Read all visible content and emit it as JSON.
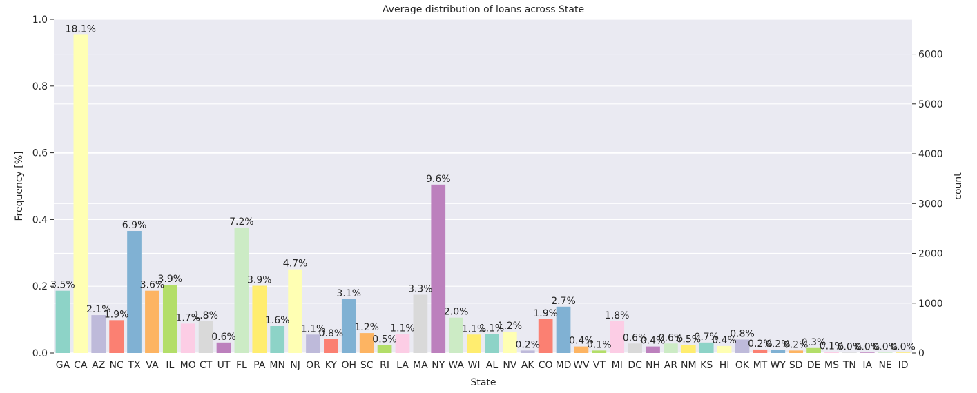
{
  "chart_data": {
    "type": "bar",
    "title": "Average distribution of loans across State",
    "xlabel": "State",
    "ylabel": "Frequency [%]",
    "y2label": "count",
    "ylim": [
      0,
      1.0
    ],
    "y2lim": [
      0,
      6700
    ],
    "yticks": [
      "0.0",
      "0.2",
      "0.4",
      "0.6",
      "0.8",
      "1.0"
    ],
    "y2ticks": [
      "0",
      "1000",
      "2000",
      "3000",
      "4000",
      "5000",
      "6000"
    ],
    "grid": true,
    "categories": [
      "GA",
      "CA",
      "AZ",
      "NC",
      "TX",
      "VA",
      "IL",
      "MO",
      "CT",
      "UT",
      "FL",
      "PA",
      "MN",
      "NJ",
      "OR",
      "KY",
      "OH",
      "SC",
      "RI",
      "LA",
      "MA",
      "NY",
      "WA",
      "WI",
      "AL",
      "NV",
      "AK",
      "CO",
      "MD",
      "WV",
      "VT",
      "MI",
      "DC",
      "NH",
      "AR",
      "NM",
      "KS",
      "HI",
      "OK",
      "MT",
      "WY",
      "SD",
      "DE",
      "MS",
      "TN",
      "IA",
      "NE",
      "ID"
    ],
    "counts": [
      1250,
      6390,
      760,
      660,
      2450,
      1250,
      1370,
      590,
      640,
      210,
      2520,
      1350,
      540,
      1680,
      370,
      280,
      1080,
      400,
      160,
      380,
      1170,
      3380,
      710,
      370,
      380,
      430,
      50,
      680,
      930,
      130,
      50,
      640,
      190,
      130,
      190,
      160,
      210,
      140,
      270,
      70,
      60,
      50,
      100,
      20,
      10,
      10,
      10,
      10
    ],
    "pct_labels": [
      "3.5%",
      "18.1%",
      "2.1%",
      "1.9%",
      "6.9%",
      "3.6%",
      "3.9%",
      "1.7%",
      "1.8%",
      "0.6%",
      "7.2%",
      "3.9%",
      "1.6%",
      "4.7%",
      "1.1%",
      "0.8%",
      "3.1%",
      "1.2%",
      "0.5%",
      "1.1%",
      "3.3%",
      "9.6%",
      "2.0%",
      "1.1%",
      "1.1%",
      "1.2%",
      "0.2%",
      "1.9%",
      "2.7%",
      "0.4%",
      "0.1%",
      "1.8%",
      "0.6%",
      "0.4%",
      "0.6%",
      "0.5%",
      "0.7%",
      "0.4%",
      "0.8%",
      "0.2%",
      "0.2%",
      "0.2%",
      "0.3%",
      "0.1%",
      "0.0%",
      "0.0%",
      "0.0%",
      "0.0%"
    ],
    "colors": [
      "#8dd3c7",
      "#ffffb3",
      "#bebada",
      "#fb8072",
      "#80b1d3",
      "#fdb462",
      "#b3de69",
      "#fccde5",
      "#d9d9d9",
      "#bc80bd",
      "#ccebc5",
      "#ffed6f"
    ]
  }
}
